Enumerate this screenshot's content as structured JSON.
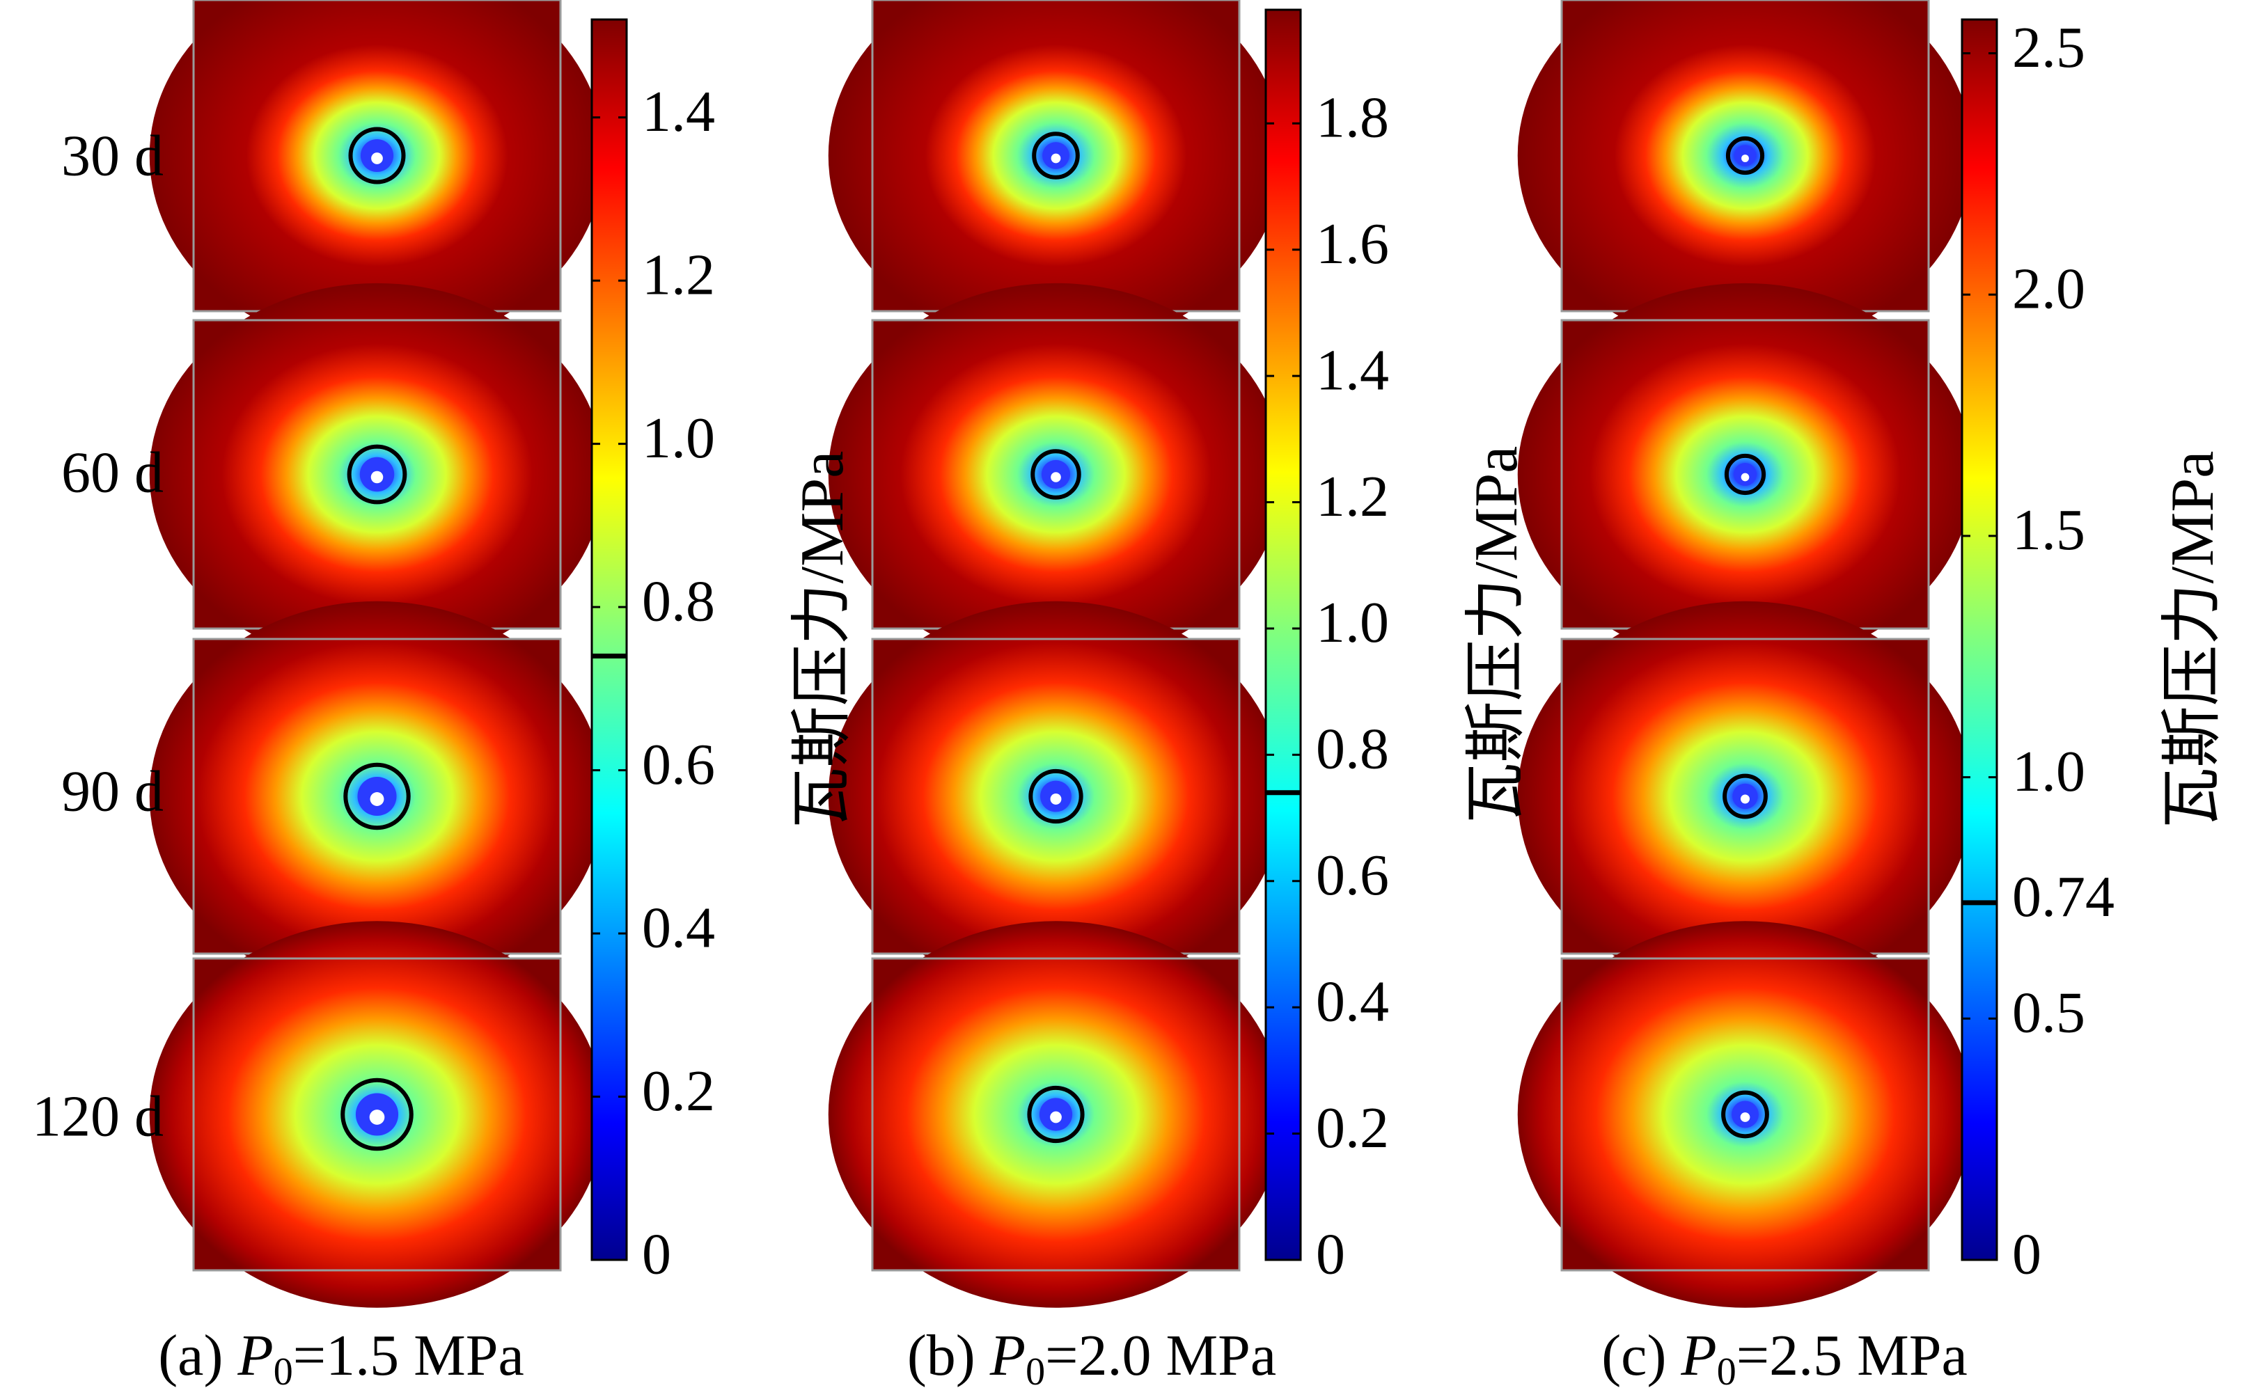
{
  "row_labels": [
    "30 d",
    "60 d",
    "90 d",
    "120 d"
  ],
  "colorbar_title": "瓦斯压力/MPa",
  "chart_data": [
    {
      "type": "heatmap",
      "caption_prefix": "(a) ",
      "caption_var": "P",
      "caption_sub": "0",
      "caption_rest": "=1.5 MPa",
      "p0": 1.5,
      "colorbar": {
        "range": [
          0,
          1.52
        ],
        "ticks": [
          0,
          0.2,
          0.4,
          0.6,
          0.8,
          1.0,
          1.2,
          1.4
        ],
        "tick_labels": [
          "0",
          "0.2",
          "0.4",
          "0.6",
          "0.8",
          "1.0",
          "1.2",
          "1.4"
        ],
        "marker_value": 0.74
      },
      "panels": [
        {
          "label": "30 d",
          "contour_radius_rel": 0.085,
          "spread": 0.3
        },
        {
          "label": "60 d",
          "contour_radius_rel": 0.09,
          "spread": 0.38
        },
        {
          "label": "90 d",
          "contour_radius_rel": 0.1,
          "spread": 0.46
        },
        {
          "label": "120 d",
          "contour_radius_rel": 0.11,
          "spread": 0.54
        }
      ]
    },
    {
      "type": "heatmap",
      "caption_prefix": "(b) ",
      "caption_var": "P",
      "caption_sub": "0",
      "caption_rest": "=2.0 MPa",
      "p0": 2.0,
      "colorbar": {
        "range": [
          0,
          1.98
        ],
        "ticks": [
          0,
          0.2,
          0.4,
          0.6,
          0.8,
          1.0,
          1.2,
          1.4,
          1.6,
          1.8
        ],
        "tick_labels": [
          "0",
          "0.2",
          "0.4",
          "0.6",
          "0.8",
          "1.0",
          "1.2",
          "1.4",
          "1.6",
          "1.8"
        ],
        "marker_value": 0.74
      },
      "panels": [
        {
          "label": "30 d",
          "contour_radius_rel": 0.07,
          "spread": 0.3
        },
        {
          "label": "60 d",
          "contour_radius_rel": 0.075,
          "spread": 0.38
        },
        {
          "label": "90 d",
          "contour_radius_rel": 0.08,
          "spread": 0.46
        },
        {
          "label": "120 d",
          "contour_radius_rel": 0.085,
          "spread": 0.54
        }
      ]
    },
    {
      "type": "heatmap",
      "caption_prefix": "(c) ",
      "caption_var": "P",
      "caption_sub": "0",
      "caption_rest": "=2.5 MPa",
      "p0": 2.5,
      "colorbar": {
        "range": [
          0,
          2.57
        ],
        "ticks": [
          0,
          0.5,
          0.74,
          1.0,
          1.5,
          2.0,
          2.5
        ],
        "tick_labels": [
          "0",
          "0.5",
          "0.74",
          "1.0",
          "1.5",
          "2.0",
          "2.5"
        ],
        "marker_value": 0.74
      },
      "panels": [
        {
          "label": "30 d",
          "contour_radius_rel": 0.055,
          "spread": 0.3
        },
        {
          "label": "60 d",
          "contour_radius_rel": 0.06,
          "spread": 0.38
        },
        {
          "label": "90 d",
          "contour_radius_rel": 0.065,
          "spread": 0.46
        },
        {
          "label": "120 d",
          "contour_radius_rel": 0.07,
          "spread": 0.54
        }
      ]
    }
  ]
}
